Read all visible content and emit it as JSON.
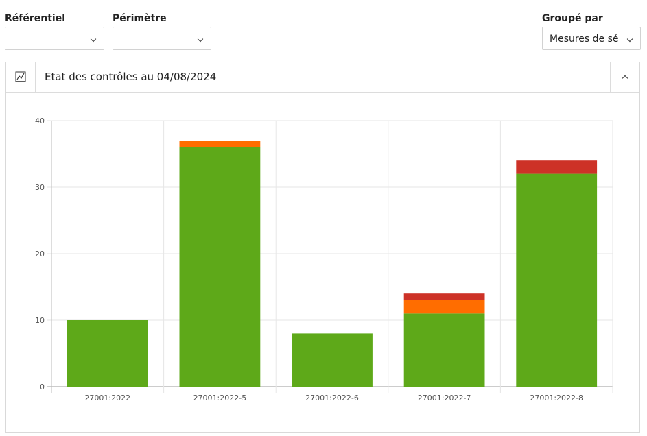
{
  "filters": {
    "referentiel": {
      "label": "Référentiel",
      "value": ""
    },
    "perimetre": {
      "label": "Périmètre",
      "value": ""
    },
    "groupe_par": {
      "label": "Groupé par",
      "value": "Mesures de sé"
    }
  },
  "panel": {
    "title": "Etat des contrôles au 04/08/2024",
    "icon": "line-chart-icon"
  },
  "colors": {
    "green": "#5ea919",
    "orange": "#ff6d00",
    "red": "#cd3227"
  },
  "chart_data": {
    "type": "bar",
    "stacked": true,
    "categories": [
      "27001:2022",
      "27001:2022-5",
      "27001:2022-6",
      "27001:2022-7",
      "27001:2022-8"
    ],
    "series": [
      {
        "color": "#5ea919",
        "values": [
          10,
          36,
          8,
          11,
          32
        ]
      },
      {
        "color": "#ff6d00",
        "values": [
          0,
          1,
          0,
          2,
          0
        ]
      },
      {
        "color": "#cd3227",
        "values": [
          0,
          0,
          0,
          1,
          2
        ]
      }
    ],
    "yticks": [
      0,
      10,
      20,
      30,
      40
    ],
    "ylim": [
      0,
      40
    ],
    "grid": true
  }
}
